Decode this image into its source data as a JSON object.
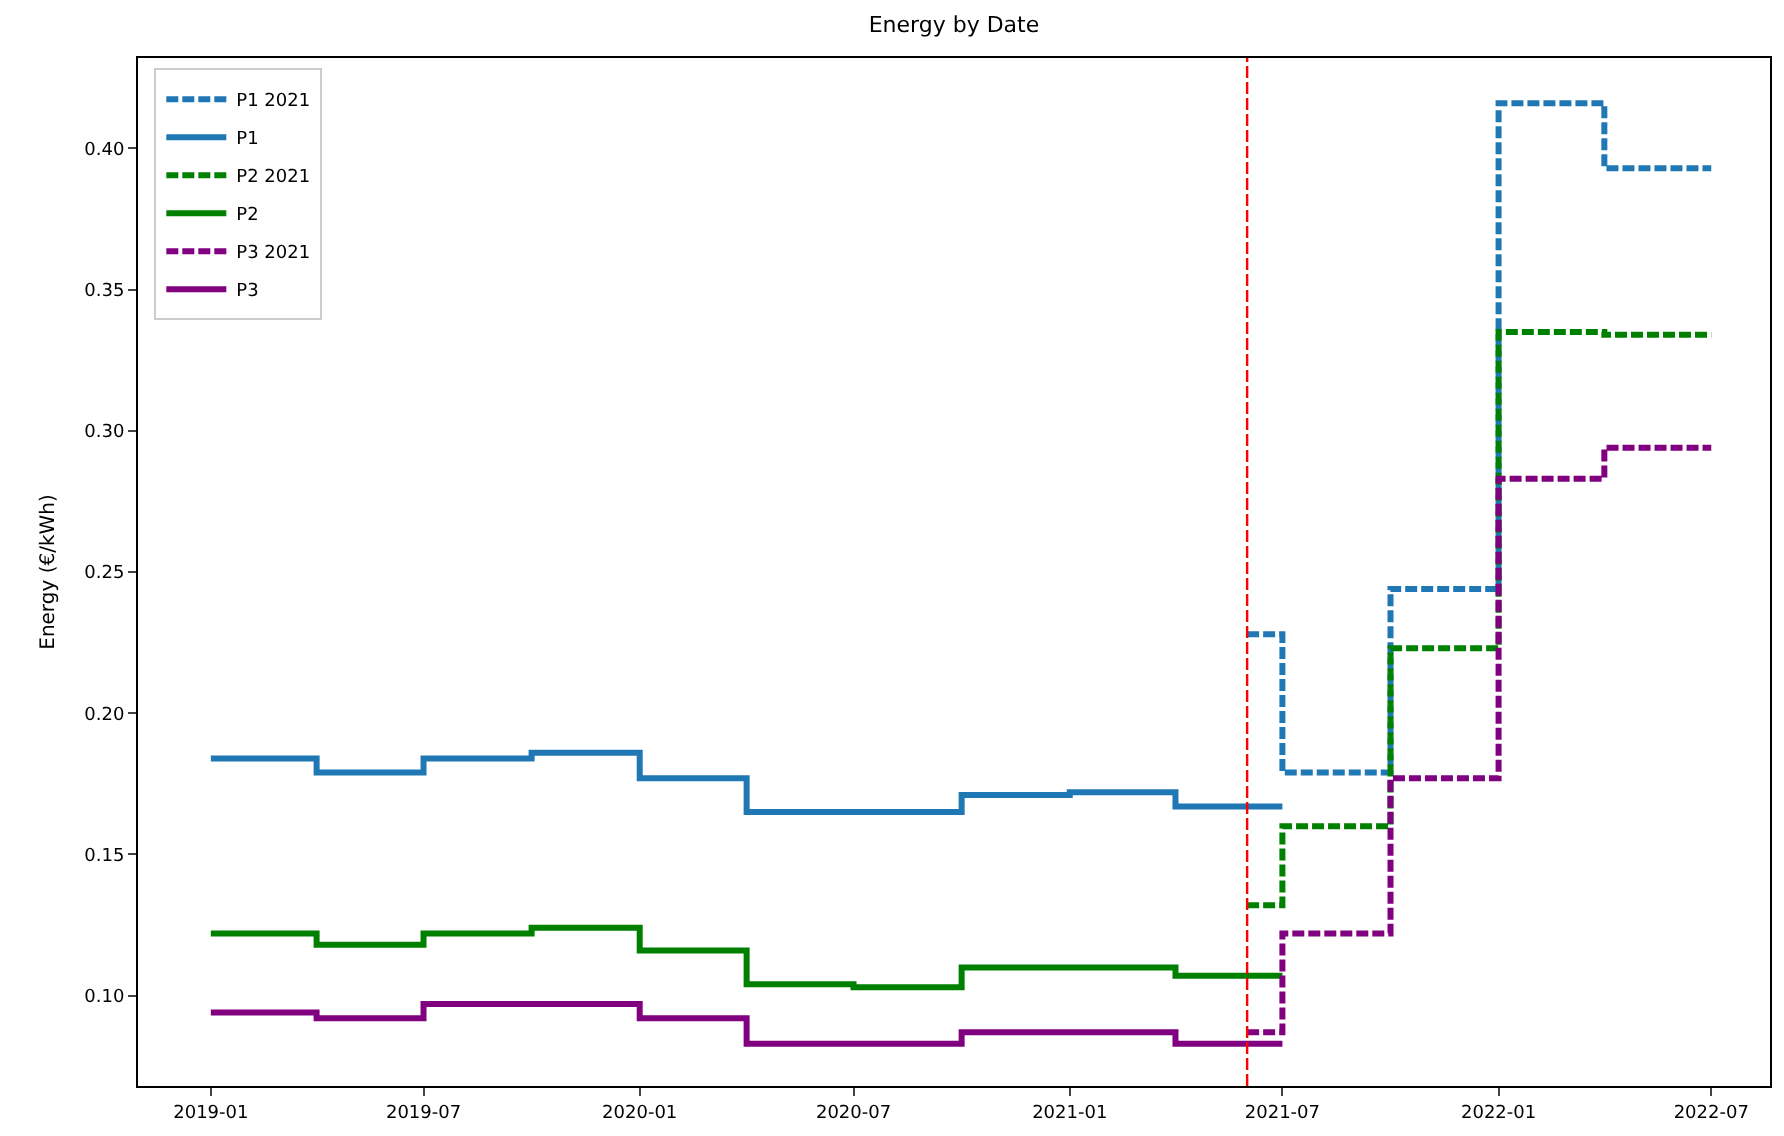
{
  "chart_data": {
    "type": "step",
    "title": "Energy by Date",
    "ylabel": "Energy (€/kWh)",
    "xlim": [
      "2018-10-31",
      "2022-08-20"
    ],
    "xticks": [
      "2019-01",
      "2019-07",
      "2020-01",
      "2020-07",
      "2021-01",
      "2021-07",
      "2022-01",
      "2022-07"
    ],
    "ylim": [
      0.068,
      0.432
    ],
    "yticks": [
      {
        "value": 0.1,
        "label": "0.10"
      },
      0.15,
      {
        "value": 0.2,
        "label": "0.20"
      },
      0.25,
      {
        "value": 0.3,
        "label": "0.30"
      },
      0.35,
      {
        "value": 0.4,
        "label": "0.40"
      }
    ],
    "legend": "top left",
    "ref_lines": [
      {
        "axis": "x",
        "value": "2021-06-01",
        "color": "#ff0000",
        "line_style": "dashed"
      }
    ],
    "series": [
      {
        "name": "P1 2021",
        "color": "#1f77b4",
        "line_style": "dashed",
        "x": [
          "2021-06-01",
          "2021-07-01",
          "2021-10-01",
          "2022-01-01",
          "2022-04-01",
          "2022-07-01"
        ],
        "values": [
          0.228,
          0.179,
          0.244,
          0.416,
          0.393,
          0.393
        ]
      },
      {
        "name": "P1",
        "color": "#1f77b4",
        "line_style": "solid",
        "x": [
          "2019-01-01",
          "2019-04-01",
          "2019-07-01",
          "2019-10-01",
          "2020-01-01",
          "2020-04-01",
          "2020-07-01",
          "2020-10-01",
          "2021-01-01",
          "2021-04-01",
          "2021-07-01"
        ],
        "values": [
          0.184,
          0.179,
          0.184,
          0.186,
          0.177,
          0.165,
          0.165,
          0.171,
          0.172,
          0.167,
          0.167
        ]
      },
      {
        "name": "P2 2021",
        "color": "#008000",
        "line_style": "dashed",
        "x": [
          "2021-06-01",
          "2021-07-01",
          "2021-10-01",
          "2022-01-01",
          "2022-04-01",
          "2022-07-01"
        ],
        "values": [
          0.132,
          0.16,
          0.223,
          0.335,
          0.334,
          0.334
        ]
      },
      {
        "name": "P2",
        "color": "#008000",
        "line_style": "solid",
        "x": [
          "2019-01-01",
          "2019-04-01",
          "2019-07-01",
          "2019-10-01",
          "2020-01-01",
          "2020-04-01",
          "2020-07-01",
          "2020-10-01",
          "2021-01-01",
          "2021-04-01",
          "2021-07-01"
        ],
        "values": [
          0.122,
          0.118,
          0.122,
          0.124,
          0.116,
          0.104,
          0.103,
          0.11,
          0.11,
          0.107,
          0.107
        ]
      },
      {
        "name": "P3 2021",
        "color": "#800080",
        "line_style": "dashed",
        "x": [
          "2021-06-01",
          "2021-07-01",
          "2021-10-01",
          "2022-01-01",
          "2022-04-01",
          "2022-07-01"
        ],
        "values": [
          0.087,
          0.122,
          0.177,
          0.283,
          0.294,
          0.294
        ]
      },
      {
        "name": "P3",
        "color": "#800080",
        "line_style": "solid",
        "x": [
          "2019-01-01",
          "2019-04-01",
          "2019-07-01",
          "2019-10-01",
          "2020-01-01",
          "2020-04-01",
          "2020-07-01",
          "2020-10-01",
          "2021-01-01",
          "2021-04-01",
          "2021-07-01"
        ],
        "values": [
          0.094,
          0.092,
          0.097,
          0.097,
          0.092,
          0.083,
          0.083,
          0.087,
          0.087,
          0.083,
          0.083
        ]
      }
    ]
  }
}
